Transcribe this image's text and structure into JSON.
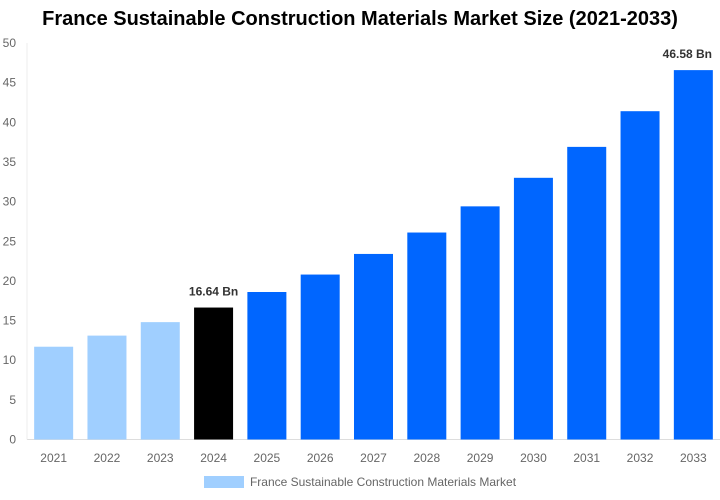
{
  "chart_data": {
    "type": "bar",
    "title": "France Sustainable Construction Materials Market Size (2021-2033)",
    "categories": [
      "2021",
      "2022",
      "2023",
      "2024",
      "2025",
      "2026",
      "2027",
      "2028",
      "2029",
      "2030",
      "2031",
      "2032",
      "2033"
    ],
    "series": [
      {
        "name": "France Sustainable Construction Materials Market",
        "values": [
          11.7,
          13.1,
          14.8,
          16.64,
          18.6,
          20.8,
          23.4,
          26.1,
          29.4,
          33.0,
          36.9,
          41.4,
          46.58
        ]
      }
    ],
    "data_labels": {
      "3": "16.64 Bn",
      "12": "46.58 Bn"
    },
    "bar_colors": [
      "#a0cfff",
      "#a0cfff",
      "#a0cfff",
      "#000000",
      "#0066ff",
      "#0066ff",
      "#0066ff",
      "#0066ff",
      "#0066ff",
      "#0066ff",
      "#0066ff",
      "#0066ff",
      "#0066ff"
    ],
    "legend_color": "#a0cfff",
    "yticks": [
      0,
      5,
      10,
      15,
      20,
      25,
      30,
      35,
      40,
      45,
      50
    ],
    "ylim": [
      0,
      50
    ],
    "xlabel": "",
    "ylabel": "",
    "grid": false,
    "legend_position": "bottom"
  }
}
